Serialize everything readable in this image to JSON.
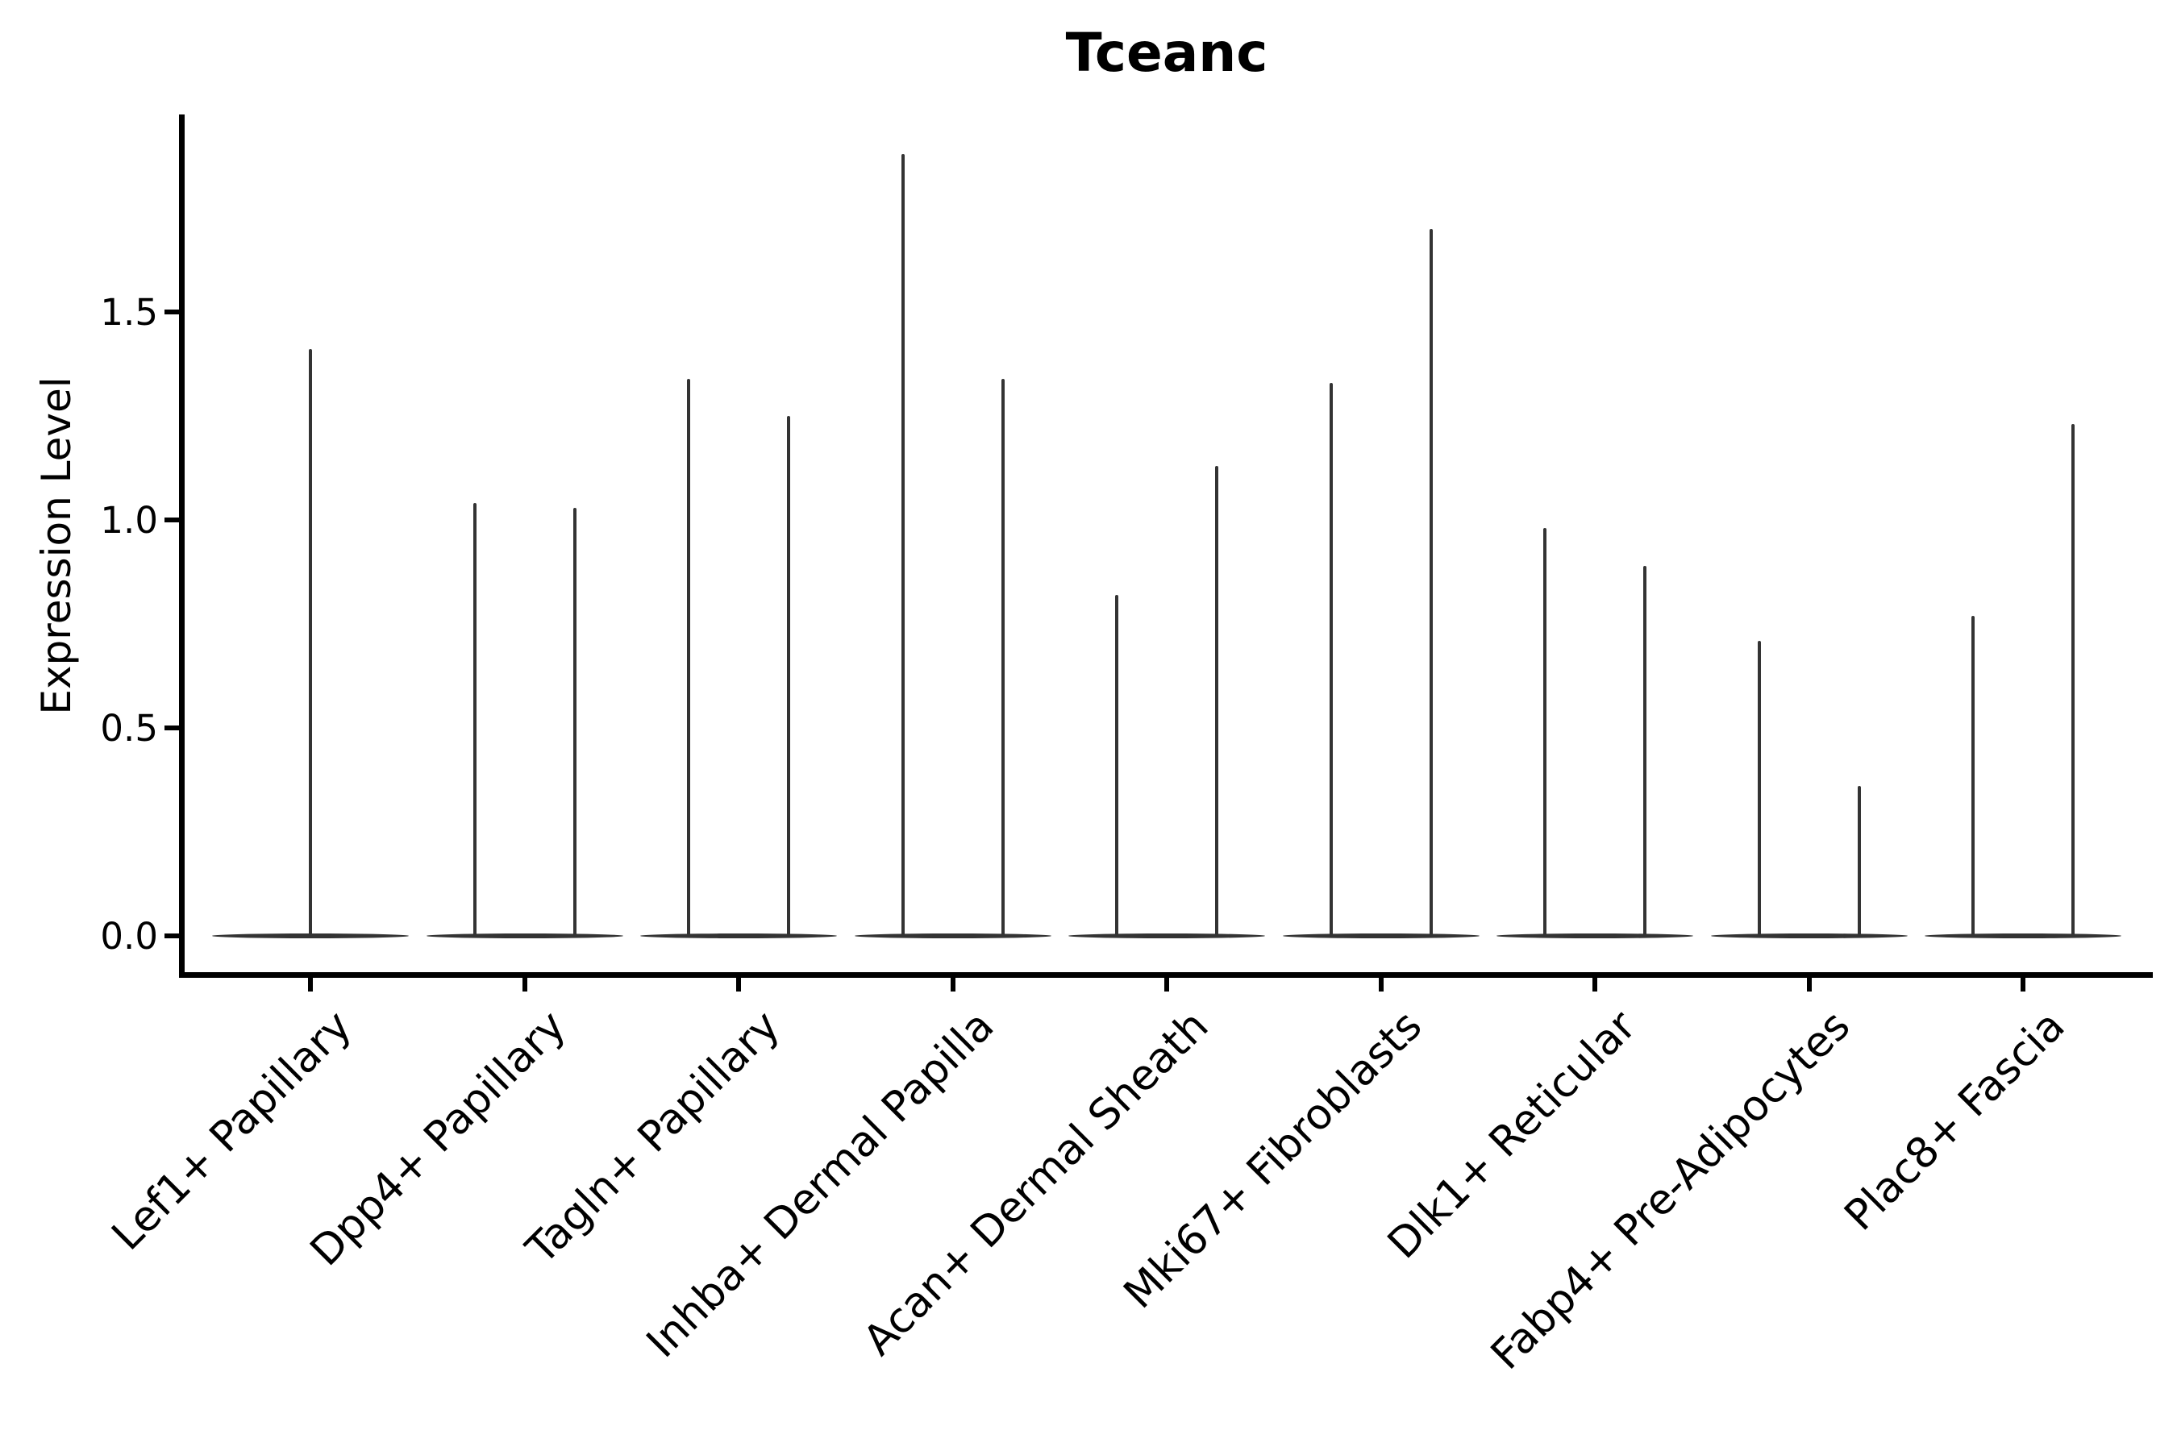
{
  "figure": {
    "title": "Tceanc",
    "ylabel": "Expression Level"
  },
  "chart_data": {
    "type": "violin",
    "title": "Tceanc",
    "xlabel": "",
    "ylabel": "Expression Level",
    "grid": false,
    "legend": null,
    "ylim": [
      -0.09,
      1.97
    ],
    "yticks": [
      {
        "value": 0.0,
        "label": "0.0"
      },
      {
        "value": 0.5,
        "label": "0.5"
      },
      {
        "value": 1.0,
        "label": "1.0"
      },
      {
        "value": 1.5,
        "label": "1.5"
      }
    ],
    "categories": [
      "Lef1+ Papillary",
      "Dpp4+ Papillary",
      "Tagln+ Papillary",
      "Inhba+ Dermal Papilla",
      "Acan+ Dermal Sheath",
      "Mki67+ Fibroblasts",
      "Dlk1+ Reticular",
      "Fabp4+ Pre-Adipocytes",
      "Plac8+ Fascia"
    ],
    "series": [
      {
        "category": "Lef1+ Papillary",
        "violin_maxima": [
          1.41
        ],
        "baseline_value": 0.0
      },
      {
        "category": "Dpp4+ Papillary",
        "violin_maxima": [
          1.04,
          1.03
        ],
        "baseline_value": 0.0
      },
      {
        "category": "Tagln+ Papillary",
        "violin_maxima": [
          1.34,
          1.25
        ],
        "baseline_value": 0.0
      },
      {
        "category": "Inhba+ Dermal Papilla",
        "violin_maxima": [
          1.88,
          1.34
        ],
        "baseline_value": 0.0
      },
      {
        "category": "Acan+ Dermal Sheath",
        "violin_maxima": [
          0.82,
          1.13
        ],
        "baseline_value": 0.0
      },
      {
        "category": "Mki67+ Fibroblasts",
        "violin_maxima": [
          1.33,
          1.7
        ],
        "baseline_value": 0.0
      },
      {
        "category": "Dlk1+ Reticular",
        "violin_maxima": [
          0.98,
          0.89
        ],
        "baseline_value": 0.0
      },
      {
        "category": "Fabp4+ Pre-Adipocytes",
        "violin_maxima": [
          0.71,
          0.36
        ],
        "baseline_value": 0.0
      },
      {
        "category": "Plac8+ Fascia",
        "violin_maxima": [
          0.77,
          1.23
        ],
        "baseline_value": 0.0
      }
    ],
    "style_notes": "extremely thin violins (near-zero width) rendered as vertical spikes over a flat tapered baseline lens per category; left and bottom spines only",
    "colors": {
      "violin_line": "#333333",
      "spine": "#000000",
      "text": "#000000",
      "background": "#ffffff"
    }
  }
}
